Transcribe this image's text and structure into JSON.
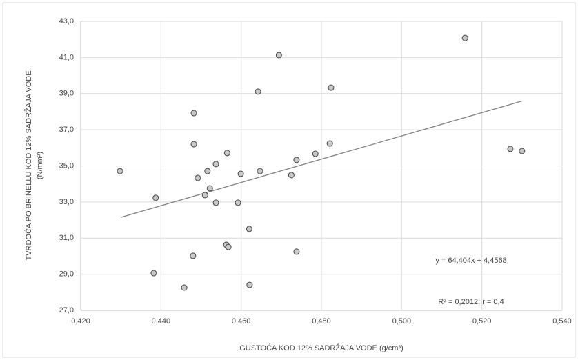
{
  "chart_data": {
    "type": "scatter",
    "x_label": "GUSTOĆA KOD 12% SADRŽAJA VODE (g/cm³)",
    "y_label": [
      "TVRDOĆA PO BRINELLU KOD 12% SADRŽAJA VODE",
      "(N/mm²)"
    ],
    "annotations": [
      "y = 64,404x + 4,4568",
      "R² = 0,2012; r = 0,4"
    ],
    "x": [
      0.4298,
      0.4387,
      0.4382,
      0.4458,
      0.448,
      0.4482,
      0.4482,
      0.4492,
      0.4516,
      0.451,
      0.4522,
      0.4537,
      0.4537,
      0.4565,
      0.4563,
      0.4568,
      0.4592,
      0.4599,
      0.462,
      0.4621,
      0.4642,
      0.4647,
      0.4694,
      0.4725,
      0.4738,
      0.4738,
      0.4785,
      0.4821,
      0.4824,
      0.5158,
      0.5271,
      0.53
    ],
    "values": [
      34.71,
      33.23,
      29.06,
      28.26,
      30.02,
      37.92,
      36.2,
      34.33,
      34.71,
      33.38,
      33.76,
      35.1,
      32.96,
      35.71,
      30.63,
      30.51,
      32.96,
      34.56,
      31.51,
      28.41,
      39.11,
      34.71,
      41.13,
      34.49,
      35.33,
      30.25,
      35.67,
      36.24,
      39.33,
      42.08,
      35.94,
      35.82
    ],
    "color": "#c8c8c8",
    "trendline": {
      "x": [
        0.43,
        0.53
      ],
      "values": [
        32.15,
        38.59
      ],
      "color": "#808080"
    },
    "xlim": [
      0.42,
      0.54
    ],
    "xticks": [
      {
        "value": 0.42,
        "label": "0,420"
      },
      {
        "value": 0.44,
        "label": "0,440"
      },
      {
        "value": 0.46,
        "label": "0,460"
      },
      {
        "value": 0.48,
        "label": "0,480"
      },
      {
        "value": 0.5,
        "label": "0,500"
      },
      {
        "value": 0.52,
        "label": "0,520"
      },
      {
        "value": 0.54,
        "label": "0,540"
      }
    ],
    "ylim": [
      27,
      43
    ],
    "yticks": [
      {
        "value": 27,
        "label": "27,0"
      },
      {
        "value": 29,
        "label": "29,0"
      },
      {
        "value": 31,
        "label": "31,0"
      },
      {
        "value": 33,
        "label": "33,0"
      },
      {
        "value": 35,
        "label": "35,0"
      },
      {
        "value": 37,
        "label": "37,0"
      },
      {
        "value": 39,
        "label": "39,0"
      },
      {
        "value": 41,
        "label": "41,0"
      },
      {
        "value": 43,
        "label": "43,0"
      }
    ],
    "grid": true
  }
}
